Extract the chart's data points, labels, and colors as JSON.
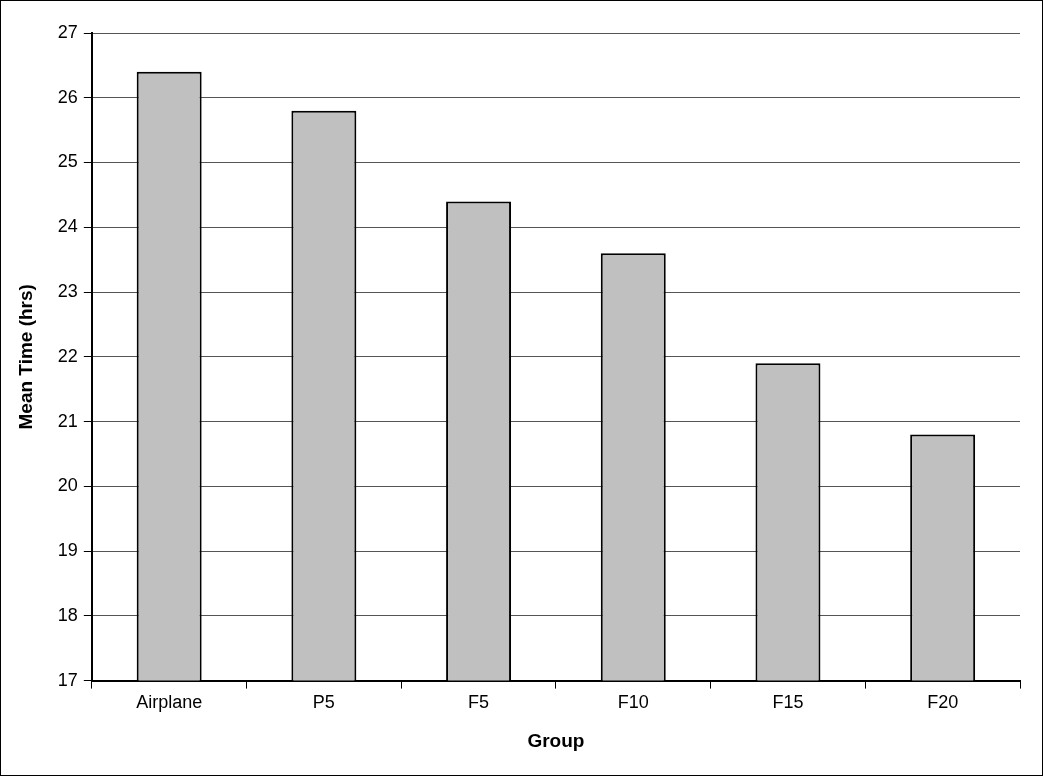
{
  "chart_data": {
    "type": "bar",
    "xlabel": "Group",
    "ylabel": "Mean Time (hrs)",
    "categories": [
      "Airplane",
      "P5",
      "F5",
      "F10",
      "F15",
      "F20"
    ],
    "values": [
      26.4,
      25.8,
      24.4,
      23.6,
      21.9,
      20.8
    ],
    "color": "#c0c0c0",
    "ylim": [
      17,
      27
    ],
    "yticks": [
      17,
      18,
      19,
      20,
      21,
      22,
      23,
      24,
      25,
      26,
      27
    ],
    "grid": "y",
    "legend": false
  }
}
